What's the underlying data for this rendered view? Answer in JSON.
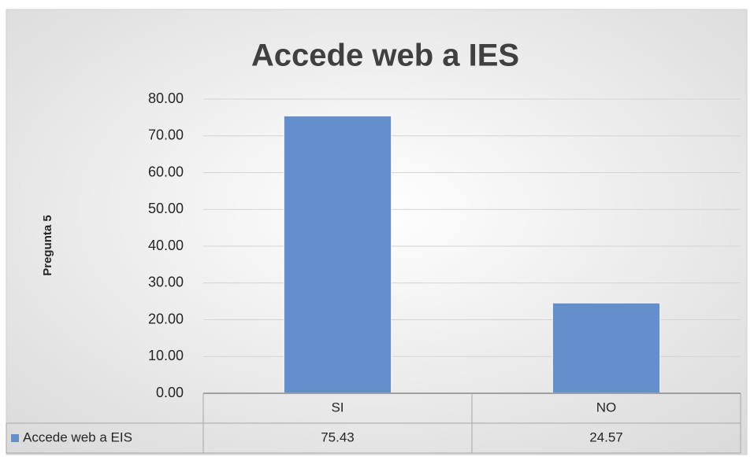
{
  "chart_data": {
    "type": "bar",
    "title": "Accede web a IES",
    "ylabel": "Pregunta 5",
    "categories": [
      "SI",
      "NO"
    ],
    "series": [
      {
        "name": "Accede web a EIS",
        "color": "#658fca",
        "values": [
          75.43,
          24.57
        ]
      }
    ],
    "ylim": [
      0,
      80
    ],
    "yticks": [
      {
        "value": 0,
        "label": "0.00"
      },
      {
        "value": 10,
        "label": "10.00"
      },
      {
        "value": 20,
        "label": "20.00"
      },
      {
        "value": 30,
        "label": "30.00"
      },
      {
        "value": 40,
        "label": "40.00"
      },
      {
        "value": 50,
        "label": "50.00"
      },
      {
        "value": 60,
        "label": "60.00"
      },
      {
        "value": 70,
        "label": "70.00"
      },
      {
        "value": 80,
        "label": "80.00"
      }
    ],
    "grid": true,
    "data_table": true
  }
}
